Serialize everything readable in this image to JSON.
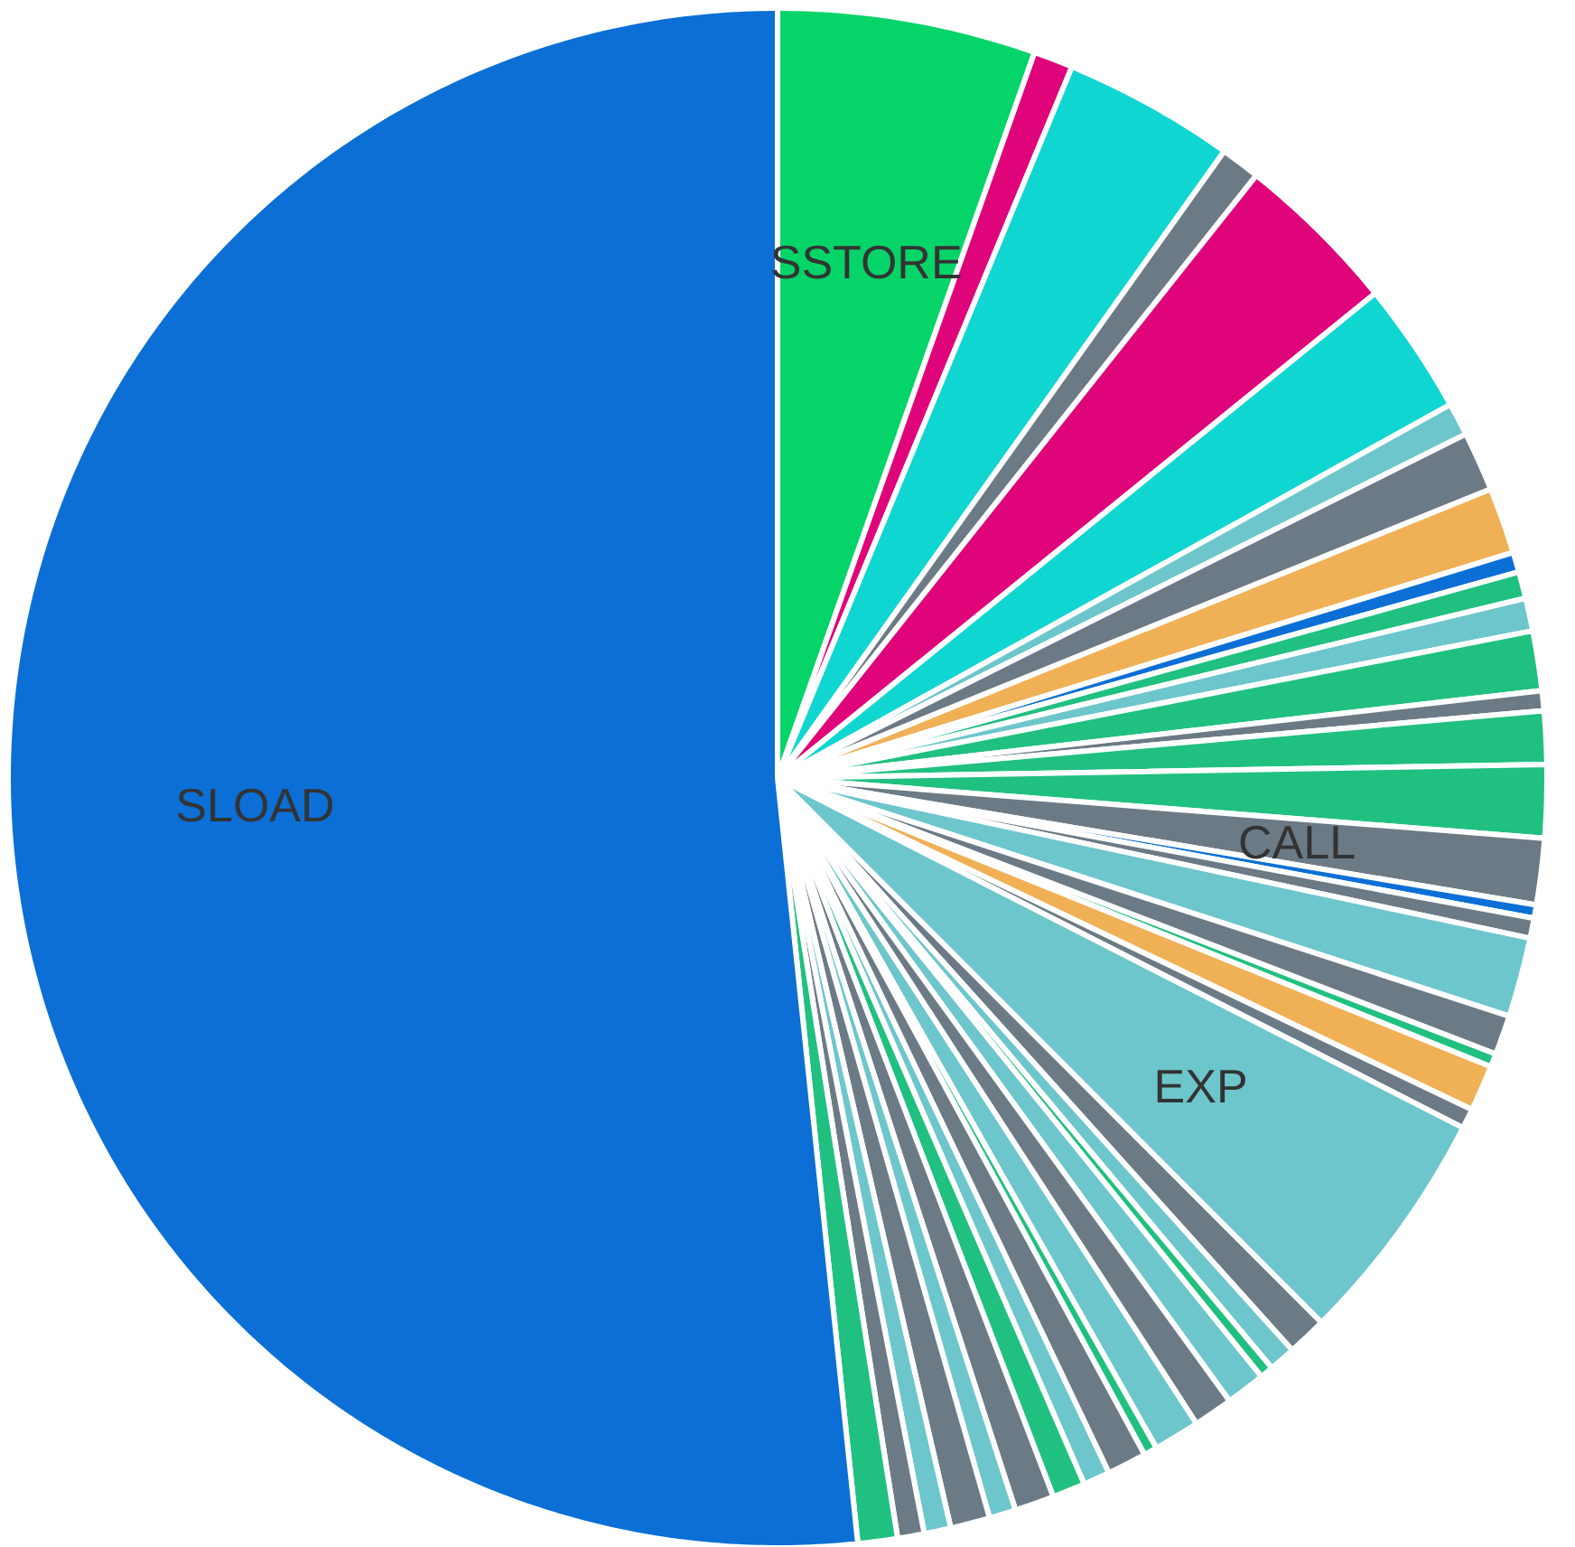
{
  "chart_data": {
    "type": "pie",
    "categories": [
      "SSTORE",
      null,
      null,
      null,
      null,
      null,
      null,
      null,
      null,
      null,
      null,
      null,
      null,
      null,
      null,
      null,
      "CALL",
      null,
      null,
      null,
      null,
      null,
      null,
      null,
      "EXP",
      null,
      null,
      null,
      null,
      null,
      null,
      null,
      null,
      null,
      null,
      null,
      null,
      null,
      null,
      null,
      null,
      "SLOAD"
    ],
    "values": [
      5.42,
      0.83,
      3.61,
      0.83,
      3.47,
      2.78,
      0.69,
      1.25,
      1.39,
      0.42,
      0.56,
      0.69,
      1.25,
      0.42,
      1.11,
      1.53,
      1.39,
      0.28,
      0.42,
      1.67,
      0.83,
      0.28,
      0.97,
      0.42,
      5.0,
      0.83,
      0.56,
      0.28,
      0.83,
      0.83,
      0.97,
      0.28,
      0.83,
      0.56,
      0.69,
      0.83,
      0.56,
      0.83,
      0.56,
      0.56,
      0.83,
      51.67
    ],
    "colors": [
      "#05d468",
      "#e0047a",
      "#0fd6d0",
      "#6c7a86",
      "#e0047a",
      "#0fd6d0",
      "#6cc6cc",
      "#6c7a86",
      "#f0b055",
      "#0b6fd6",
      "#20c080",
      "#6cc6cc",
      "#20c080",
      "#6c7a86",
      "#20c080",
      "#20c080",
      "#6c7a86",
      "#0b6fd6",
      "#6c7a86",
      "#6cc6cc",
      "#6c7a86",
      "#20c080",
      "#f0b055",
      "#6c7a86",
      "#6cc6cc",
      "#6c7a86",
      "#6cc6cc",
      "#20c080",
      "#6cc6cc",
      "#6c7a86",
      "#6cc6cc",
      "#20c080",
      "#6c7a86",
      "#6cc6cc",
      "#20c080",
      "#6c7a86",
      "#6cc6cc",
      "#6c7a86",
      "#6cc6cc",
      "#6c7a86",
      "#20c080",
      "#0b6fd6"
    ]
  }
}
